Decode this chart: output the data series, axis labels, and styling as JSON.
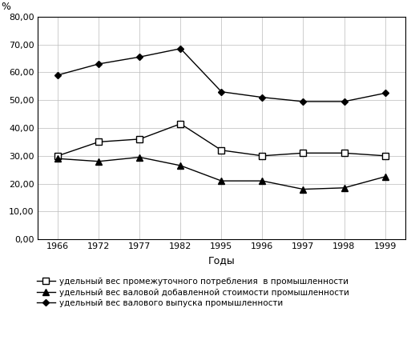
{
  "year_labels": [
    "1966",
    "1972",
    "1977",
    "1982",
    "1995",
    "1996",
    "1997",
    "1998",
    "1999"
  ],
  "intermediate_consumption": [
    30.0,
    35.0,
    36.0,
    41.5,
    32.0,
    30.0,
    31.0,
    31.0,
    30.0
  ],
  "gross_value_added": [
    29.0,
    28.0,
    29.5,
    26.5,
    21.0,
    21.0,
    18.0,
    18.5,
    22.5
  ],
  "gross_output": [
    59.0,
    63.0,
    65.5,
    68.5,
    53.0,
    51.0,
    49.5,
    49.5,
    52.5
  ],
  "ylabel": "%",
  "xlabel": "Годы",
  "ylim": [
    0,
    80
  ],
  "ytick_values": [
    0.0,
    10.0,
    20.0,
    30.0,
    40.0,
    50.0,
    60.0,
    70.0,
    80.0
  ],
  "ytick_labels": [
    "0,00",
    "10,00",
    "20,00",
    "30,00",
    "40,00",
    "50,00",
    "60,00",
    "70,00",
    "80,00"
  ],
  "legend_labels": [
    "удельный вес промежуточного потребления  в промышленности",
    "удельный вес валовой добавленной стоимости промышленности",
    "удельный вес валового выпуска промышленности"
  ],
  "line_color": "#000000",
  "background_color": "#ffffff",
  "grid_color": "#bbbbbb",
  "n_points": 9
}
